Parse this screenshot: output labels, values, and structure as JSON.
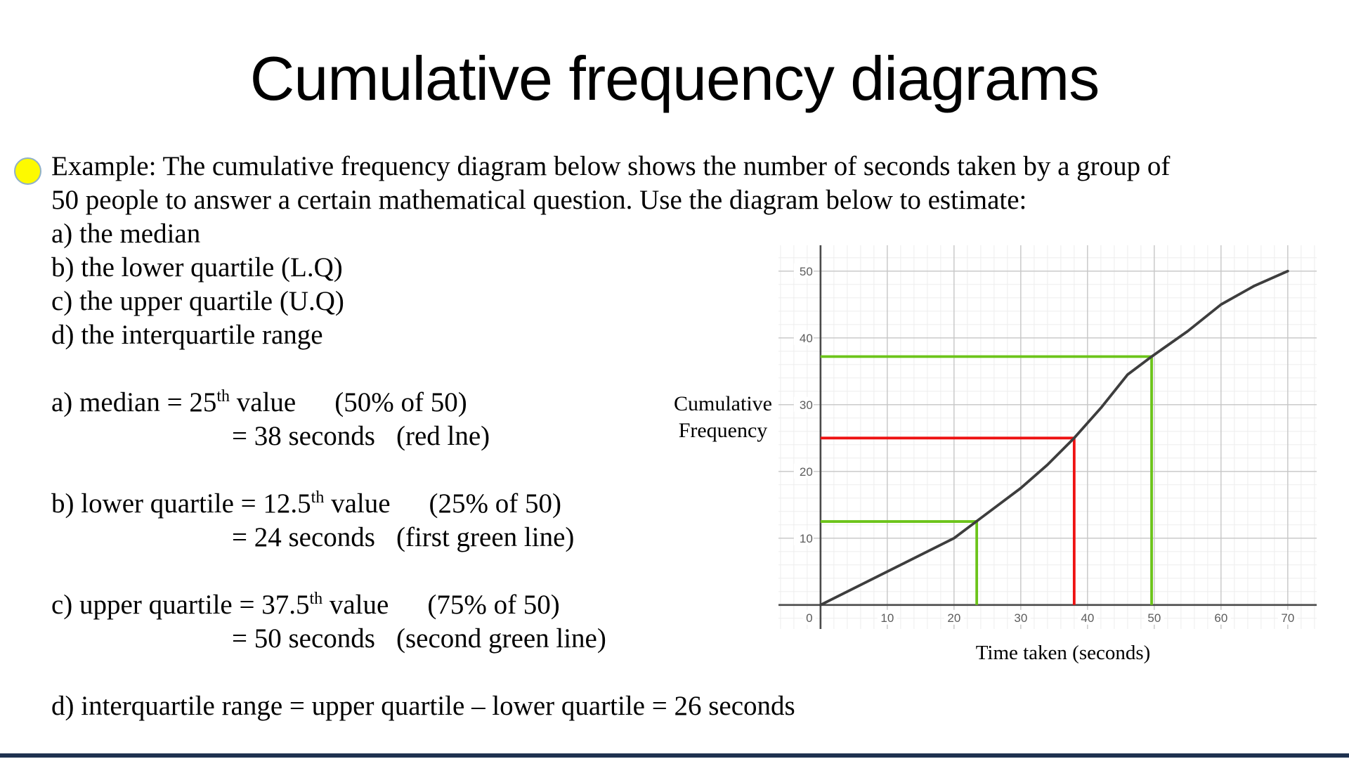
{
  "slide": {
    "title": "Cumulative frequency diagrams",
    "bullet_color": "#fdfa00",
    "bullet_border_color": "#8fb0c9",
    "footer_bar_color": "#1f3250",
    "intro": {
      "line1": "Example: The cumulative frequency diagram below shows the number of seconds taken by a group of",
      "line2": "50 people to answer a certain mathematical question. Use the diagram below to estimate:"
    },
    "questions": [
      "a) the median",
      "b) the lower quartile (L.Q)",
      "c) the upper quartile (U.Q)",
      "d) the interquartile range"
    ],
    "answers": {
      "a": {
        "prefix": "a) median = 25",
        "sup": "th",
        "after": " value",
        "paren": "(50% of 50)",
        "line2": "= 38 seconds",
        "line2_paren": "(red lne)"
      },
      "b": {
        "prefix": "b) lower quartile = 12.5",
        "sup": "th",
        "after": " value",
        "paren": "(25% of 50)",
        "line2": "= 24 seconds",
        "line2_paren": "(first green line)"
      },
      "c": {
        "prefix": "c) upper quartile = 37.5",
        "sup": "th",
        "after": " value",
        "paren": "(75% of 50)",
        "line2": "= 50 seconds",
        "line2_paren": "(second green line)"
      },
      "d": "d) interquartile range = upper quartile – lower quartile = 26 seconds"
    }
  },
  "chart": {
    "y_axis_title_line1": "Cumulative",
    "y_axis_title_line2": "Frequency",
    "x_axis_title": "Time taken (seconds)"
  },
  "chart_data": {
    "type": "line",
    "title": "",
    "xlabel": "Time taken (seconds)",
    "ylabel": "Cumulative Frequency",
    "xlim": [
      -6.3,
      74.3
    ],
    "ylim": [
      -3.6,
      53.9
    ],
    "x_ticks": [
      0,
      10,
      20,
      30,
      40,
      50,
      60,
      70
    ],
    "y_ticks": [
      10,
      20,
      30,
      40,
      50
    ],
    "minor_grid_step": 2,
    "grid_on": true,
    "grid": {
      "minor_color": "#ededed",
      "major_color": "#c6c6c6",
      "axis_color": "#4a4a4a",
      "tick_label_color": "#5c5c5c"
    },
    "series": [
      {
        "name": "ogive",
        "color": "#3d3d3d",
        "points": [
          [
            0,
            0
          ],
          [
            20,
            10
          ],
          [
            30,
            17.5
          ],
          [
            34,
            21
          ],
          [
            38,
            25
          ],
          [
            42,
            29.5
          ],
          [
            46,
            34.5
          ],
          [
            49.6,
            37.2
          ],
          [
            55,
            41
          ],
          [
            60,
            45
          ],
          [
            65,
            47.8
          ],
          [
            70,
            50
          ]
        ]
      }
    ],
    "annotations": [
      {
        "name": "median-red",
        "color": "#ee1111",
        "points": [
          [
            0,
            25
          ],
          [
            38,
            25
          ],
          [
            38,
            0
          ]
        ]
      },
      {
        "name": "lower-quartile-green",
        "color": "#6cc41a",
        "points": [
          [
            0,
            12.5
          ],
          [
            23.4,
            12.5
          ],
          [
            23.4,
            0
          ]
        ]
      },
      {
        "name": "upper-quartile-green",
        "color": "#6cc41a",
        "points": [
          [
            0,
            37.2
          ],
          [
            49.6,
            37.2
          ],
          [
            49.6,
            0
          ]
        ]
      }
    ]
  }
}
